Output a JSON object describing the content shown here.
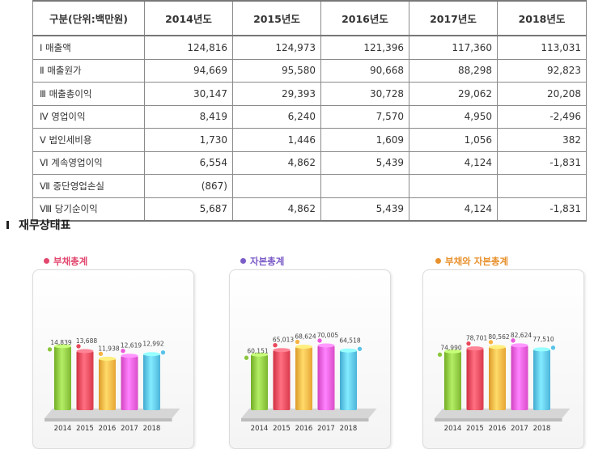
{
  "table": {
    "headers": [
      "구분(단위:백만원)",
      "2014년도",
      "2015년도",
      "2016년도",
      "2017년도",
      "2018년도"
    ],
    "rows": [
      {
        "label": "Ⅰ 매출액",
        "values": [
          "124,816",
          "124,973",
          "121,396",
          "117,360",
          "113,031"
        ]
      },
      {
        "label": "Ⅱ 매출원가",
        "values": [
          "94,669",
          "95,580",
          "90,668",
          "88,298",
          "92,823"
        ]
      },
      {
        "label": "Ⅲ 매출총이익",
        "values": [
          "30,147",
          "29,393",
          "30,728",
          "29,062",
          "20,208"
        ]
      },
      {
        "label": "Ⅳ 영업이익",
        "values": [
          "8,419",
          "6,240",
          "7,570",
          "4,950",
          "-2,496"
        ]
      },
      {
        "label": "Ⅴ 법인세비용",
        "values": [
          "1,730",
          "1,446",
          "1,609",
          "1,056",
          "382"
        ]
      },
      {
        "label": "Ⅵ 계속영업이익",
        "values": [
          "6,554",
          "4,862",
          "5,439",
          "4,124",
          "-1,831"
        ]
      },
      {
        "label": "Ⅶ 중단영업손실",
        "values": [
          "(867)",
          "",
          "",
          "",
          ""
        ]
      },
      {
        "label": "Ⅷ 당기순이익",
        "values": [
          "5,687",
          "4,862",
          "5,439",
          "4,124",
          "-1,831"
        ]
      }
    ]
  },
  "section_title": "재무상태표",
  "colors": {
    "bars": [
      "#8cc63f",
      "#e8485a",
      "#f5b342",
      "#e95bd8",
      "#5bc3e8"
    ],
    "title_debt": "#e2476e",
    "title_equity": "#7b5cc8",
    "title_total": "#e8902c"
  },
  "chart_data": [
    {
      "type": "bar",
      "title": "부채총계",
      "categories": [
        "2014",
        "2015",
        "2016",
        "2017",
        "2018"
      ],
      "values": [
        14839,
        13688,
        11938,
        12619,
        12992
      ],
      "labels": [
        "14,839",
        "13,688",
        "11,938",
        "12,619",
        "12,992"
      ],
      "ylim": [
        0,
        30000
      ],
      "grid": false
    },
    {
      "type": "bar",
      "title": "자본총계",
      "categories": [
        "2014",
        "2015",
        "2016",
        "2017",
        "2018"
      ],
      "values": [
        60151,
        65013,
        68624,
        70005,
        64518
      ],
      "labels": [
        "60,151",
        "65,013",
        "68,624",
        "70,005",
        "64,518"
      ],
      "ylim": [
        0,
        140000
      ],
      "grid": false
    },
    {
      "type": "bar",
      "title": "부채와 자본총계",
      "categories": [
        "2014",
        "2015",
        "2016",
        "2017",
        "2018"
      ],
      "values": [
        74990,
        78701,
        80562,
        82624,
        77510
      ],
      "labels": [
        "74,990",
        "78,701",
        "80,562",
        "82,624",
        "77,510"
      ],
      "ylim": [
        0,
        165000
      ],
      "grid": false
    }
  ]
}
